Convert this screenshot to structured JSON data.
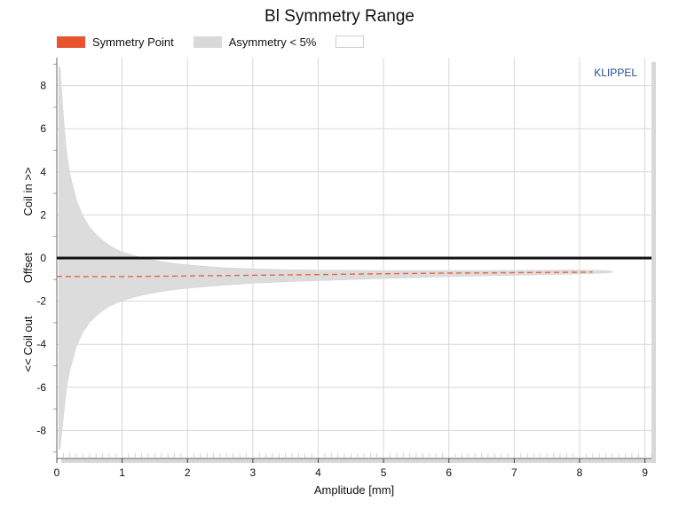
{
  "chart_data": {
    "type": "area",
    "title": "Bl Symmetry Range",
    "xlabel": "Amplitude [mm]",
    "ylabel_parts": [
      "<< Coil out",
      "Offset",
      "Coil in >>"
    ],
    "brand": "KLIPPEL",
    "xlim": [
      0,
      9.1
    ],
    "ylim": [
      -9.3,
      9.3
    ],
    "xticks": [
      0,
      1,
      2,
      3,
      4,
      5,
      6,
      7,
      8,
      9
    ],
    "yticks": [
      -8,
      -6,
      -4,
      -2,
      0,
      2,
      4,
      6,
      8
    ],
    "grid": true,
    "legend_position": "top",
    "series": [
      {
        "name": "Symmetry Point",
        "color": "#e8663a",
        "style": "dashed",
        "x": [
          0,
          0.5,
          1,
          2,
          3,
          4,
          5,
          6,
          7,
          8,
          8.2
        ],
        "y": [
          -0.85,
          -0.86,
          -0.86,
          -0.83,
          -0.8,
          -0.77,
          -0.73,
          -0.7,
          -0.68,
          -0.66,
          -0.65
        ]
      },
      {
        "name": "Asymmetry < 5%",
        "color": "#dcdcdc",
        "x": [
          0.03,
          0.05,
          0.1,
          0.15,
          0.2,
          0.3,
          0.4,
          0.5,
          0.6,
          0.7,
          0.8,
          0.9,
          1.0,
          1.2,
          1.4,
          1.6,
          1.8,
          2.0,
          2.5,
          3.0,
          3.5,
          4.0,
          5.0,
          6.0,
          7.0,
          8.0,
          8.4,
          8.5
        ],
        "upper": [
          8.9,
          8.85,
          6.6,
          4.9,
          3.9,
          2.7,
          1.95,
          1.45,
          1.1,
          0.82,
          0.6,
          0.42,
          0.28,
          0.1,
          -0.05,
          -0.16,
          -0.25,
          -0.32,
          -0.44,
          -0.5,
          -0.54,
          -0.56,
          -0.58,
          -0.58,
          -0.57,
          -0.55,
          -0.58,
          -0.62
        ],
        "lower": [
          -8.9,
          -8.85,
          -7.4,
          -6.0,
          -5.2,
          -4.1,
          -3.45,
          -3.0,
          -2.7,
          -2.45,
          -2.25,
          -2.1,
          -1.98,
          -1.8,
          -1.66,
          -1.55,
          -1.47,
          -1.4,
          -1.27,
          -1.17,
          -1.1,
          -1.05,
          -0.95,
          -0.86,
          -0.8,
          -0.74,
          -0.7,
          -0.66
        ]
      },
      {
        "name": "",
        "color": "#ffffff"
      }
    ]
  }
}
